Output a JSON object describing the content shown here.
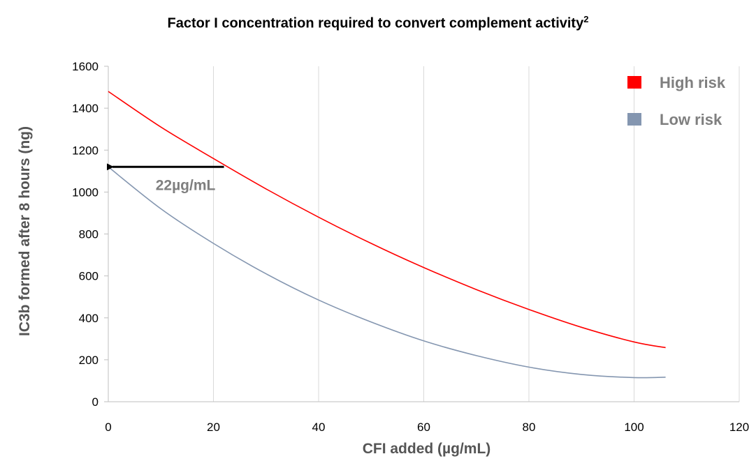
{
  "chart_data": {
    "type": "line",
    "title": "Factor I concentration required to convert complement activity",
    "title_superscript": "2",
    "xlabel": "CFI added (µg/mL)",
    "ylabel": "IC3b formed after 8 hours (ng)",
    "xlim": [
      0,
      120
    ],
    "ylim": [
      0,
      1600
    ],
    "xticks": [
      0,
      20,
      40,
      60,
      80,
      100,
      120
    ],
    "yticks": [
      0,
      200,
      400,
      600,
      800,
      1000,
      1200,
      1400,
      1600
    ],
    "grid": "vertical",
    "legend_position": "top-right",
    "series": [
      {
        "name": "High risk",
        "color": "#ff0000",
        "x": [
          0,
          10,
          20,
          30,
          40,
          50,
          60,
          70,
          80,
          90,
          100,
          106
        ],
        "y": [
          1480,
          1310,
          1160,
          1015,
          880,
          755,
          640,
          535,
          440,
          355,
          285,
          258
        ]
      },
      {
        "name": "Low risk",
        "color": "#8496b0",
        "x": [
          0,
          10,
          20,
          30,
          40,
          50,
          60,
          70,
          80,
          90,
          100,
          106
        ],
        "y": [
          1120,
          920,
          755,
          610,
          485,
          380,
          290,
          220,
          165,
          130,
          115,
          117
        ]
      }
    ],
    "annotations": [
      {
        "type": "arrow",
        "from": [
          22,
          1120
        ],
        "to": [
          0,
          1120
        ],
        "color": "#000000"
      },
      {
        "type": "text",
        "text": "22µg/mL",
        "at": [
          9,
          1010
        ]
      }
    ]
  }
}
